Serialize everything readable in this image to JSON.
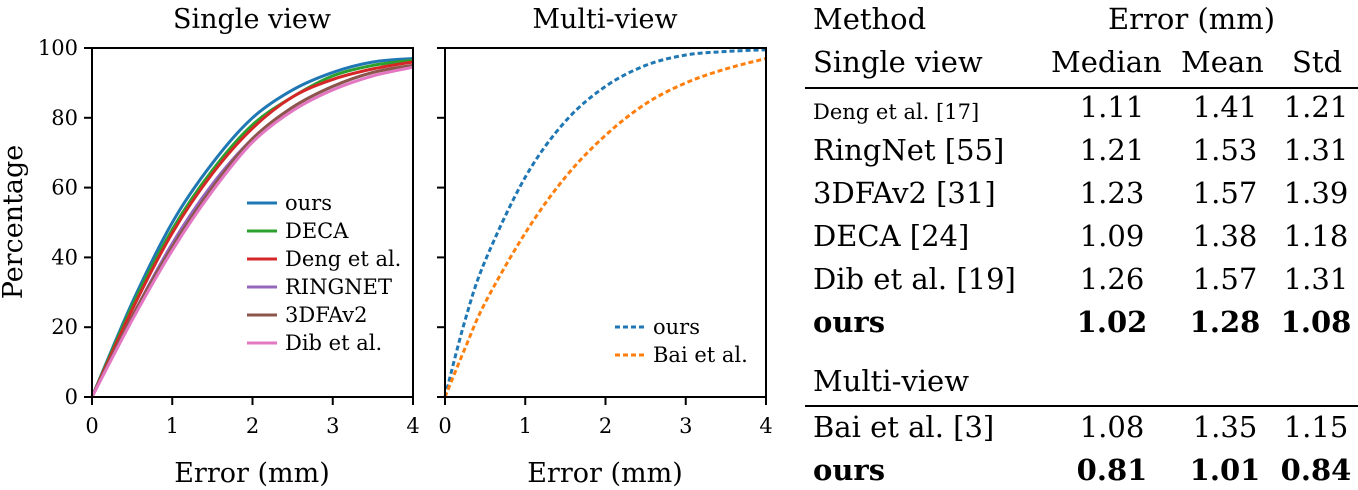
{
  "chart_data": [
    {
      "type": "line",
      "title": "Single view",
      "xlabel": "Error (mm)",
      "ylabel": "Percentage",
      "xlim": [
        0,
        4
      ],
      "ylim": [
        0,
        100
      ],
      "xticks": [
        "0",
        "1",
        "2",
        "3",
        "4"
      ],
      "yticks": [
        "0",
        "20",
        "40",
        "60",
        "80",
        "100"
      ],
      "grid": false,
      "legend_position": "lower-right",
      "x": [
        0,
        0.5,
        1,
        1.5,
        2,
        2.5,
        3,
        3.5,
        4
      ],
      "series": [
        {
          "name": "ours",
          "color": "#1f77b4",
          "dash": "solid",
          "values": [
            0,
            27,
            50,
            67,
            80,
            88,
            93,
            96,
            97
          ]
        },
        {
          "name": "DECA",
          "color": "#2ca02c",
          "dash": "solid",
          "values": [
            0,
            26,
            48,
            65,
            78,
            86,
            92,
            95,
            96.5
          ]
        },
        {
          "name": "Deng et al.",
          "color": "#d62728",
          "dash": "solid",
          "values": [
            0,
            25,
            47,
            64,
            77,
            86,
            91,
            94,
            96
          ]
        },
        {
          "name": "RINGNET",
          "color": "#9467bd",
          "dash": "solid",
          "values": [
            0,
            23,
            44,
            61,
            74,
            83,
            89,
            93,
            95
          ]
        },
        {
          "name": "3DFAv2",
          "color": "#8c564b",
          "dash": "solid",
          "values": [
            0,
            23,
            43,
            60,
            74,
            83,
            89,
            93,
            95
          ]
        },
        {
          "name": "Dib et al.",
          "color": "#e377c2",
          "dash": "solid",
          "values": [
            0,
            22,
            42,
            59,
            73,
            82,
            88,
            92,
            94.5
          ]
        }
      ]
    },
    {
      "type": "line",
      "title": "Multi-view",
      "xlabel": "Error (mm)",
      "ylabel": "",
      "xlim": [
        0,
        4
      ],
      "ylim": [
        0,
        100
      ],
      "xticks": [
        "0",
        "1",
        "2",
        "3",
        "4"
      ],
      "yticks": [],
      "grid": false,
      "legend_position": "lower-right",
      "x": [
        0,
        0.25,
        0.5,
        1,
        1.5,
        2,
        2.5,
        3,
        3.5,
        4
      ],
      "series": [
        {
          "name": "ours",
          "color": "#1f77b4",
          "dash": "dashed",
          "values": [
            0,
            22,
            39,
            63,
            79,
            89,
            95,
            98,
            99,
            99.5
          ]
        },
        {
          "name": "Bai et al.",
          "color": "#ff7f0e",
          "dash": "dashed",
          "values": [
            0,
            14,
            27,
            47,
            63,
            75,
            84,
            90,
            94,
            97
          ]
        }
      ]
    }
  ],
  "table": {
    "method_header": "Method",
    "error_header": "Error (mm)",
    "single_view_label": "Single view",
    "col_median": "Median",
    "col_mean": "Mean",
    "col_std": "Std",
    "multi_view_label": "Multi-view",
    "single_rows": [
      {
        "method": "Deng et al. [17]",
        "median": "1.11",
        "mean": "1.41",
        "std": "1.21"
      },
      {
        "method": "RingNet [55]",
        "median": "1.21",
        "mean": "1.53",
        "std": "1.31"
      },
      {
        "method": "3DFAv2 [31]",
        "median": "1.23",
        "mean": "1.57",
        "std": "1.39"
      },
      {
        "method": "DECA [24]",
        "median": "1.09",
        "mean": "1.38",
        "std": "1.18"
      },
      {
        "method": "Dib et al. [19]",
        "median": "1.26",
        "mean": "1.57",
        "std": "1.31"
      },
      {
        "method": "ours",
        "median": "1.02",
        "mean": "1.28",
        "std": "1.08"
      }
    ],
    "multi_rows": [
      {
        "method": "Bai et al. [3]",
        "median": "1.08",
        "mean": "1.35",
        "std": "1.15"
      },
      {
        "method": "ours",
        "median": "0.81",
        "mean": "1.01",
        "std": "0.84"
      }
    ]
  }
}
